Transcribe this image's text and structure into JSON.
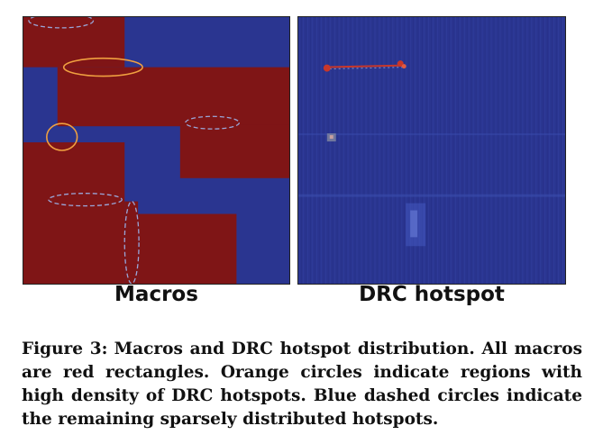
{
  "panels": {
    "left_label": "Macros",
    "right_label": "DRC hotspot"
  },
  "colors": {
    "background_blue": "#2a3590",
    "macro_red": "#7f1516",
    "orange_circle": "#f0a040",
    "blue_dashed_circle": "#9aa6d8",
    "hotspot_red": "#c8372a"
  },
  "caption": {
    "figure_label": "Figure 3:",
    "text": "Macros and DRC hotspot distribution. All macros are red rectangles. Orange circles indicate regions with high density of DRC hotspots. Blue dashed circles indicate the remaining sparsely distributed hotspots."
  }
}
